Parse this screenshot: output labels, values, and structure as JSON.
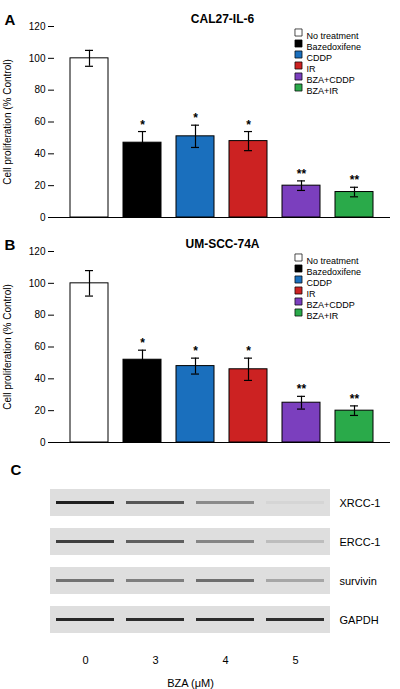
{
  "chart_data": [
    {
      "type": "bar",
      "title": "CAL27-IL-6",
      "annotations": [
        "A"
      ],
      "ylabel": "Cell proliferation (% Control)",
      "categories": [
        "No treatment",
        "Bazedoxifene",
        "CDDP",
        "IR",
        "BZA+CDDP",
        "BZA+IR"
      ],
      "values": [
        100,
        47,
        51,
        48,
        20,
        16
      ],
      "errors": [
        5,
        7,
        7,
        6,
        3,
        3
      ],
      "significance": [
        null,
        "*",
        "*",
        "*",
        "**",
        "**"
      ],
      "colors": [
        "white",
        "black",
        "#1a6fbd",
        "#cc2222",
        "#7b3fbe",
        "#2aaa4a"
      ],
      "ylim": [
        0,
        120
      ],
      "yticks": [
        0,
        20,
        40,
        60,
        80,
        100,
        120
      ],
      "legend": "upper right",
      "tick_labels": "y"
    },
    {
      "type": "bar",
      "title": "UM-SCC-74A",
      "annotations": [
        "B"
      ],
      "ylabel": "Cell proliferation (% Control)",
      "categories": [
        "No treatment",
        "Bazedoxifene",
        "CDDP",
        "IR",
        "BZA+CDDP",
        "BZA+IR"
      ],
      "values": [
        100,
        52,
        48,
        46,
        25,
        20
      ],
      "errors": [
        8,
        6,
        5,
        7,
        4,
        3
      ],
      "significance": [
        null,
        "*",
        "*",
        "*",
        "**",
        "**"
      ],
      "colors": [
        "white",
        "black",
        "#1a6fbd",
        "#cc2222",
        "#7b3fbe",
        "#2aaa4a"
      ],
      "ylim": [
        0,
        120
      ],
      "yticks": [
        0,
        20,
        40,
        60,
        80,
        100,
        120
      ],
      "legend": "upper right",
      "tick_labels": "y"
    },
    {
      "type": "heatmap",
      "annotations": [
        "C"
      ],
      "xlabel": "BZA (μM)",
      "x": [
        "0",
        "3",
        "4",
        "5"
      ],
      "y": [
        "XRCC-1",
        "ERCC-1",
        "survivin",
        "GAPDH"
      ],
      "values": [
        [
          0.95,
          0.72,
          0.5,
          0.18
        ],
        [
          0.82,
          0.68,
          0.52,
          0.28
        ],
        [
          0.6,
          0.55,
          0.62,
          0.38
        ],
        [
          0.92,
          0.9,
          0.9,
          0.89
        ]
      ]
    }
  ]
}
